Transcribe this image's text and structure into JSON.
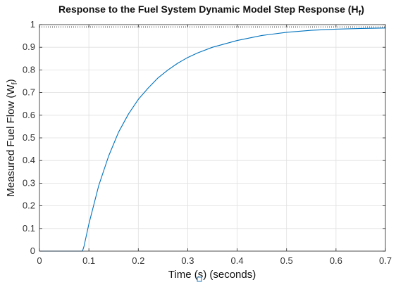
{
  "chart_data": {
    "type": "line",
    "title": "Response to the Fuel System Dynamic Model Step Response (H",
    "title_subscript": "f",
    "title_suffix": ")",
    "xlabel": "Time (s) (seconds)",
    "ylabel": "Measured Fuel Flow (W",
    "ylabel_subscript": "f",
    "ylabel_suffix": ")",
    "xlim": [
      0,
      0.7
    ],
    "ylim": [
      0,
      1
    ],
    "x_ticks": [
      "0",
      "0.1",
      "0.2",
      "0.3",
      "0.4",
      "0.5",
      "0.6",
      "0.7"
    ],
    "y_ticks": [
      "0",
      "0.1",
      "0.2",
      "0.3",
      "0.4",
      "0.5",
      "0.6",
      "0.7",
      "0.8",
      "0.9",
      "1"
    ],
    "grid": true,
    "steady_state_line": {
      "y": 0.99,
      "style": "dotted",
      "color": "#000000"
    },
    "series": [
      {
        "color": "#0072BD",
        "x": [
          0,
          0.05,
          0.087,
          0.09,
          0.1,
          0.12,
          0.14,
          0.16,
          0.18,
          0.2,
          0.22,
          0.24,
          0.26,
          0.28,
          0.3,
          0.32,
          0.35,
          0.4,
          0.45,
          0.5,
          0.55,
          0.6,
          0.65,
          0.7
        ],
        "y": [
          0,
          0,
          0,
          0.02,
          0.12,
          0.29,
          0.42,
          0.525,
          0.605,
          0.67,
          0.72,
          0.765,
          0.8,
          0.83,
          0.855,
          0.875,
          0.9,
          0.93,
          0.952,
          0.966,
          0.975,
          0.98,
          0.983,
          0.985
        ]
      }
    ]
  }
}
